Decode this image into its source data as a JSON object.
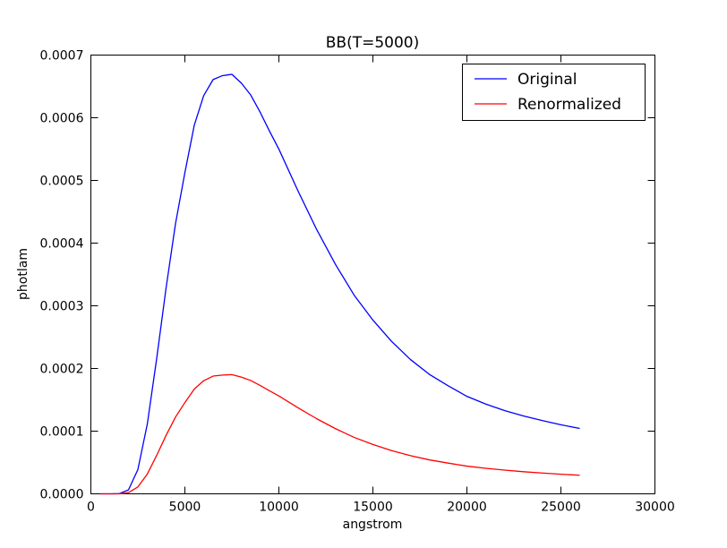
{
  "chart_data": {
    "type": "line",
    "title": "BB(T=5000)",
    "xlabel": "angstrom",
    "ylabel": "photlam",
    "xlim": [
      0,
      30000
    ],
    "ylim": [
      0,
      0.0007
    ],
    "xticks": [
      0,
      5000,
      10000,
      15000,
      20000,
      25000,
      30000
    ],
    "xtick_labels": [
      "0",
      "5000",
      "10000",
      "15000",
      "20000",
      "25000",
      "30000"
    ],
    "yticks": [
      0,
      0.0001,
      0.0002,
      0.0003,
      0.0004,
      0.0005,
      0.0006,
      0.0007
    ],
    "ytick_labels": [
      "0.0000",
      "0.0001",
      "0.0002",
      "0.0003",
      "0.0004",
      "0.0005",
      "0.0006",
      "0.0007"
    ],
    "grid": false,
    "legend_position": "top-right",
    "x": [
      500,
      1000,
      1500,
      2000,
      2500,
      3000,
      3500,
      4000,
      4500,
      5000,
      5500,
      6000,
      6500,
      7000,
      7500,
      8000,
      8500,
      9000,
      9500,
      10000,
      11000,
      12000,
      13000,
      14000,
      15000,
      16000,
      17000,
      18000,
      19000,
      20000,
      21000,
      22000,
      23000,
      24000,
      25000,
      26000
    ],
    "series": [
      {
        "name": "Original",
        "color": "#0000ff",
        "values": [
          0,
          0,
          2e-07,
          6.2e-06,
          3.87e-05,
          0.000111,
          0.0002157,
          0.0003285,
          0.0004308,
          0.0005124,
          0.0005882,
          0.0006353,
          0.0006609,
          0.0006672,
          0.0006693,
          0.0006554,
          0.0006364,
          0.000609,
          0.0005787,
          0.0005499,
          0.0004843,
          0.0004222,
          0.0003665,
          0.000317,
          0.0002772,
          0.000243,
          0.0002142,
          0.0001907,
          0.0001724,
          0.0001555,
          0.0001432,
          0.0001329,
          0.0001243,
          0.0001169,
          0.0001102,
          0.0001043
        ]
      },
      {
        "name": "Renormalized",
        "color": "#ff0000",
        "values": [
          0,
          0,
          1e-07,
          1.8e-06,
          1.1e-05,
          3.15e-05,
          6.13e-05,
          9.33e-05,
          0.0001224,
          0.0001456,
          0.0001671,
          0.0001805,
          0.0001878,
          0.0001895,
          0.0001902,
          0.0001862,
          0.0001808,
          0.000173,
          0.0001644,
          0.0001562,
          0.0001376,
          0.00012,
          0.0001041,
          9.01e-05,
          7.88e-05,
          6.9e-05,
          6.09e-05,
          5.42e-05,
          4.9e-05,
          4.42e-05,
          4.07e-05,
          3.78e-05,
          3.53e-05,
          3.32e-05,
          3.13e-05,
          2.96e-05
        ]
      }
    ]
  }
}
